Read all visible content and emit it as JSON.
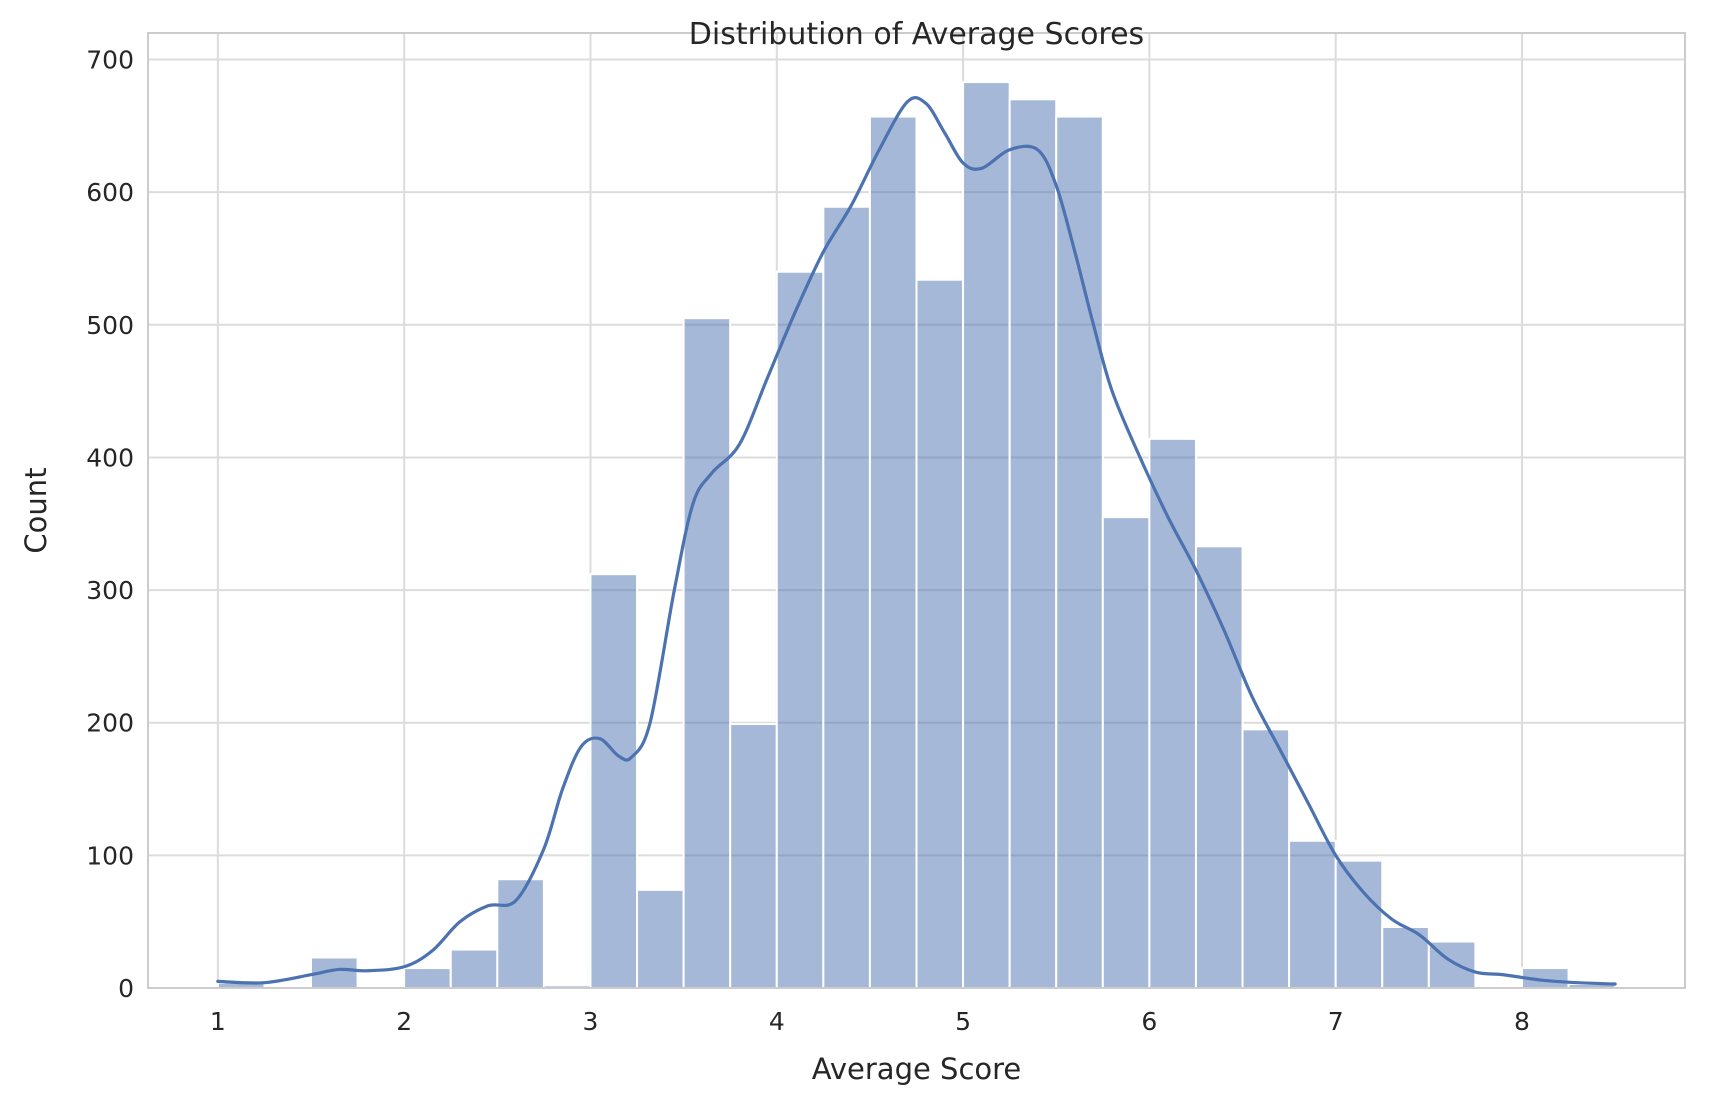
{
  "chart_data": {
    "type": "bar",
    "subtype": "histogram-with-kde",
    "title": "Distribution of Average Scores",
    "xlabel": "Average Score",
    "ylabel": "Count",
    "xlim": [
      0.625,
      8.875
    ],
    "ylim": [
      0,
      720
    ],
    "xticks": [
      1,
      2,
      3,
      4,
      5,
      6,
      7,
      8
    ],
    "yticks": [
      0,
      100,
      200,
      300,
      400,
      500,
      600,
      700
    ],
    "grid": true,
    "bar_color": "#4c72b0",
    "bar_alpha": 0.5,
    "line_color": "#4c72b0",
    "bin_width": 0.25,
    "bins": [
      {
        "x0": 1.0,
        "x1": 1.25,
        "count": 4
      },
      {
        "x0": 1.25,
        "x1": 1.5,
        "count": 0
      },
      {
        "x0": 1.5,
        "x1": 1.75,
        "count": 23
      },
      {
        "x0": 1.75,
        "x1": 2.0,
        "count": 0
      },
      {
        "x0": 2.0,
        "x1": 2.25,
        "count": 15
      },
      {
        "x0": 2.25,
        "x1": 2.5,
        "count": 29
      },
      {
        "x0": 2.5,
        "x1": 2.75,
        "count": 82
      },
      {
        "x0": 2.75,
        "x1": 3.0,
        "count": 2
      },
      {
        "x0": 3.0,
        "x1": 3.25,
        "count": 312
      },
      {
        "x0": 3.25,
        "x1": 3.5,
        "count": 74
      },
      {
        "x0": 3.5,
        "x1": 3.75,
        "count": 505
      },
      {
        "x0": 3.75,
        "x1": 4.0,
        "count": 199
      },
      {
        "x0": 4.0,
        "x1": 4.25,
        "count": 540
      },
      {
        "x0": 4.25,
        "x1": 4.5,
        "count": 589
      },
      {
        "x0": 4.5,
        "x1": 4.75,
        "count": 657
      },
      {
        "x0": 4.75,
        "x1": 5.0,
        "count": 534
      },
      {
        "x0": 5.0,
        "x1": 5.25,
        "count": 683
      },
      {
        "x0": 5.25,
        "x1": 5.5,
        "count": 670
      },
      {
        "x0": 5.5,
        "x1": 5.75,
        "count": 657
      },
      {
        "x0": 5.75,
        "x1": 6.0,
        "count": 355
      },
      {
        "x0": 6.0,
        "x1": 6.25,
        "count": 414
      },
      {
        "x0": 6.25,
        "x1": 6.5,
        "count": 333
      },
      {
        "x0": 6.5,
        "x1": 6.75,
        "count": 195
      },
      {
        "x0": 6.75,
        "x1": 7.0,
        "count": 111
      },
      {
        "x0": 7.0,
        "x1": 7.25,
        "count": 96
      },
      {
        "x0": 7.25,
        "x1": 7.5,
        "count": 46
      },
      {
        "x0": 7.5,
        "x1": 7.75,
        "count": 35
      },
      {
        "x0": 7.75,
        "x1": 8.0,
        "count": 0
      },
      {
        "x0": 8.0,
        "x1": 8.25,
        "count": 15
      },
      {
        "x0": 8.25,
        "x1": 8.5,
        "count": 3
      }
    ],
    "kde": {
      "x": [
        1.0,
        1.25,
        1.5,
        1.65,
        1.8,
        2.0,
        2.15,
        2.3,
        2.45,
        2.6,
        2.75,
        2.85,
        2.95,
        3.05,
        3.15,
        3.22,
        3.32,
        3.45,
        3.55,
        3.65,
        3.8,
        3.95,
        4.1,
        4.25,
        4.4,
        4.55,
        4.7,
        4.8,
        4.9,
        5.0,
        5.1,
        5.25,
        5.4,
        5.5,
        5.6,
        5.7,
        5.8,
        5.95,
        6.1,
        6.25,
        6.4,
        6.55,
        6.7,
        6.85,
        7.0,
        7.15,
        7.3,
        7.45,
        7.6,
        7.75,
        7.9,
        8.1,
        8.3,
        8.5
      ],
      "y": [
        5,
        4,
        10,
        14,
        13,
        16,
        28,
        50,
        62,
        66,
        105,
        150,
        182,
        188,
        175,
        174,
        200,
        300,
        365,
        388,
        410,
        460,
        510,
        555,
        590,
        632,
        668,
        667,
        645,
        622,
        618,
        632,
        632,
        605,
        555,
        500,
        450,
        400,
        355,
        315,
        270,
        220,
        180,
        140,
        100,
        72,
        52,
        40,
        22,
        12,
        10,
        6,
        4,
        3
      ]
    }
  }
}
